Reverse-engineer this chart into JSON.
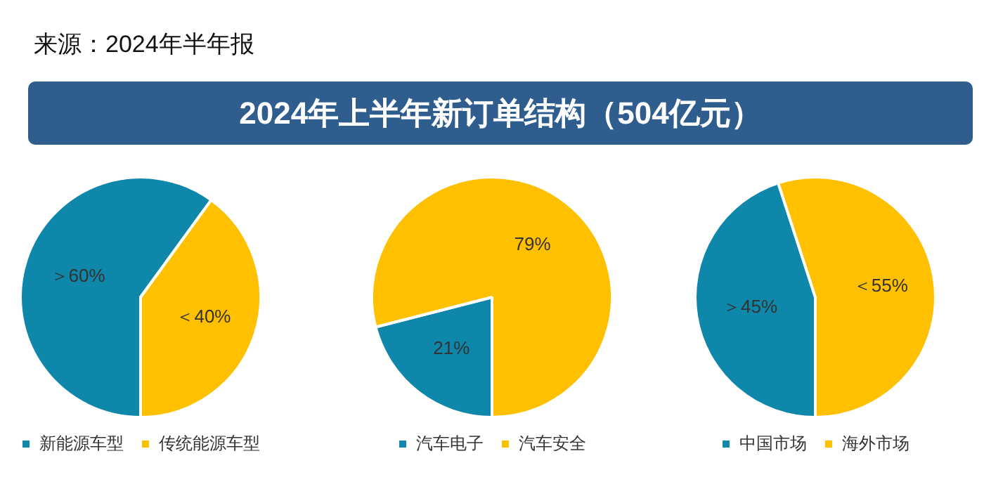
{
  "chart_data": [
    {
      "type": "pie",
      "annotations": [
        "来源：2024年半年报"
      ],
      "categories": [
        "新能源车型",
        "传统能源车型"
      ],
      "values": [
        60,
        40
      ],
      "colors": [
        "#0e87aa",
        "#ffc000"
      ],
      "value_labels": [
        "＞60%",
        "＜40%"
      ],
      "legend": "bottom"
    },
    {
      "type": "pie",
      "title": "2024年上半年新订单结构（504亿元）",
      "categories": [
        "汽车电子",
        "汽车安全"
      ],
      "values": [
        21,
        79
      ],
      "colors": [
        "#0e87aa",
        "#ffc000"
      ],
      "value_labels": [
        "21%",
        "79%"
      ],
      "legend": "bottom"
    },
    {
      "type": "pie",
      "categories": [
        "中国市场",
        "海外市场"
      ],
      "values": [
        45,
        55
      ],
      "colors": [
        "#0e87aa",
        "#ffc000"
      ],
      "value_labels": [
        "＞45%",
        "＜55%"
      ],
      "legend": "bottom"
    }
  ]
}
